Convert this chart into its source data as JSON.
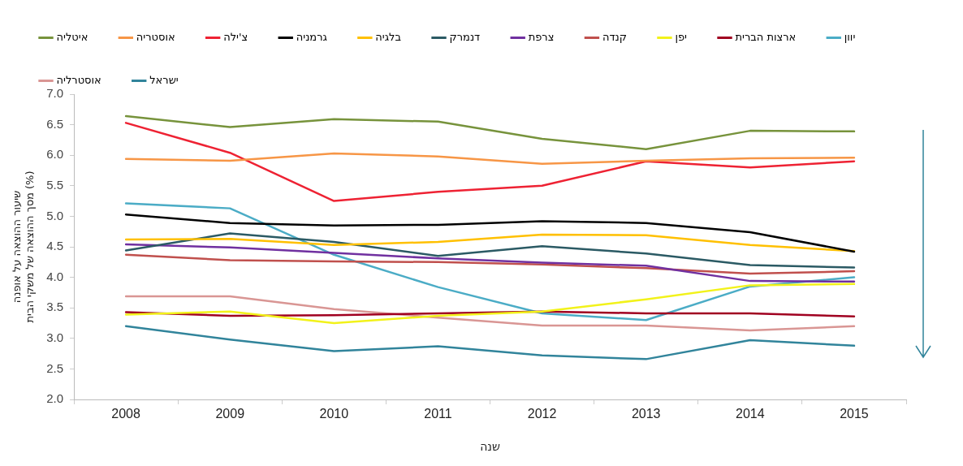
{
  "chart_data": {
    "type": "line",
    "xlabel": "שנה",
    "ylabel": "שיעור ההוצאה על אופנה\nמסך ההוצאה של משקי הבית (%)",
    "categories": [
      "2008",
      "2009",
      "2010",
      "2011",
      "2012",
      "2013",
      "2014",
      "2015"
    ],
    "ylim": [
      2.0,
      7.0
    ],
    "yticks": [
      {
        "value": 2,
        "label": "2.0"
      },
      {
        "value": 2.5,
        "label": "2.5"
      },
      {
        "value": 3,
        "label": "3.0"
      },
      {
        "value": 3.5,
        "label": "3.5"
      },
      {
        "value": 4,
        "label": "4.0"
      },
      {
        "value": 4.5,
        "label": "4.5"
      },
      {
        "value": 5,
        "label": "5.0"
      },
      {
        "value": 5.5,
        "label": "5.5"
      },
      {
        "value": 6,
        "label": "6.0"
      },
      {
        "value": 6.5,
        "label": "6.5"
      },
      {
        "value": 7,
        "label": "7.0"
      }
    ],
    "legend": "top",
    "marker": "none",
    "line_style": "solid",
    "series": [
      {
        "name": "איטליה",
        "color": "#77933c",
        "values": [
          6.64,
          6.46,
          6.59,
          6.55,
          6.27,
          6.1,
          6.4,
          6.39
        ]
      },
      {
        "name": "אוסטריה",
        "color": "#f79646",
        "values": [
          5.94,
          5.91,
          6.03,
          5.98,
          5.86,
          5.91,
          5.95,
          5.96
        ]
      },
      {
        "name": "צ'ילה",
        "color": "#ee2233",
        "values": [
          6.53,
          6.04,
          5.25,
          5.4,
          5.5,
          5.9,
          5.8,
          5.9
        ]
      },
      {
        "name": "גרמניה",
        "color": "#000000",
        "values": [
          5.03,
          4.89,
          4.85,
          4.86,
          4.92,
          4.89,
          4.74,
          4.42
        ]
      },
      {
        "name": "בלגיה",
        "color": "#ffc000",
        "values": [
          4.62,
          4.63,
          4.53,
          4.58,
          4.7,
          4.69,
          4.53,
          4.43
        ]
      },
      {
        "name": "דנמרק",
        "color": "#2b5a64",
        "values": [
          4.44,
          4.72,
          4.58,
          4.35,
          4.51,
          4.39,
          4.2,
          4.16
        ]
      },
      {
        "name": "צרפת",
        "color": "#7030a0",
        "values": [
          4.54,
          4.49,
          4.4,
          4.31,
          4.24,
          4.19,
          3.94,
          3.93
        ]
      },
      {
        "name": "קנדה",
        "color": "#c0504d",
        "values": [
          4.37,
          4.28,
          4.26,
          4.25,
          4.21,
          4.15,
          4.06,
          4.1
        ]
      },
      {
        "name": "יפן",
        "color": "#f2f21a",
        "values": [
          3.39,
          3.44,
          3.25,
          3.37,
          3.44,
          3.64,
          3.87,
          3.89
        ]
      },
      {
        "name": "ארצות הברית",
        "color": "#a00020",
        "values": [
          3.43,
          3.37,
          3.38,
          3.41,
          3.44,
          3.41,
          3.41,
          3.36
        ]
      },
      {
        "name": "יוון",
        "color": "#4bacc6",
        "values": [
          5.21,
          5.13,
          4.37,
          3.84,
          3.41,
          3.3,
          3.85,
          4.0
        ]
      },
      {
        "name": "אוסטרליה",
        "color": "#d99694",
        "values": [
          3.69,
          3.69,
          3.48,
          3.34,
          3.21,
          3.21,
          3.13,
          3.2
        ]
      },
      {
        "name": "ישראל",
        "color": "#31849b",
        "values": [
          3.2,
          2.98,
          2.79,
          2.87,
          2.72,
          2.66,
          2.97,
          2.88
        ]
      }
    ]
  }
}
